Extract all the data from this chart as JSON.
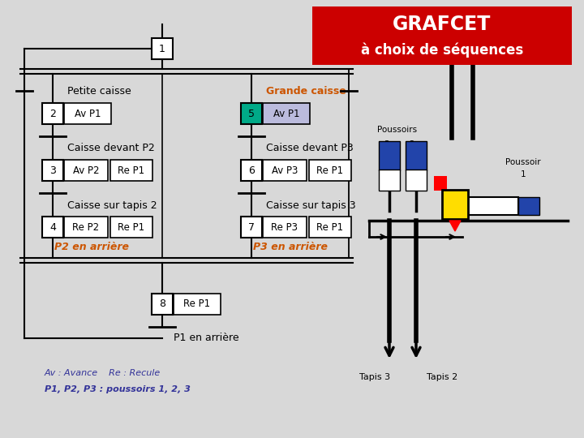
{
  "title_line1": "GRAFCET",
  "title_line2": "à choix de séquences",
  "title_bg": "#cc0000",
  "title_fg": "#ffffff",
  "bg_color": "#d8d8d8",
  "petite_caisse_label": "Petite caisse",
  "grande_caisse_label": "Grande caisse",
  "grande_caisse_color": "#cc5500",
  "p2_arriere_color": "#cc5500",
  "p3_arriere_color": "#cc5500",
  "legend_color": "#333399",
  "orange_brown": "#cc5500"
}
